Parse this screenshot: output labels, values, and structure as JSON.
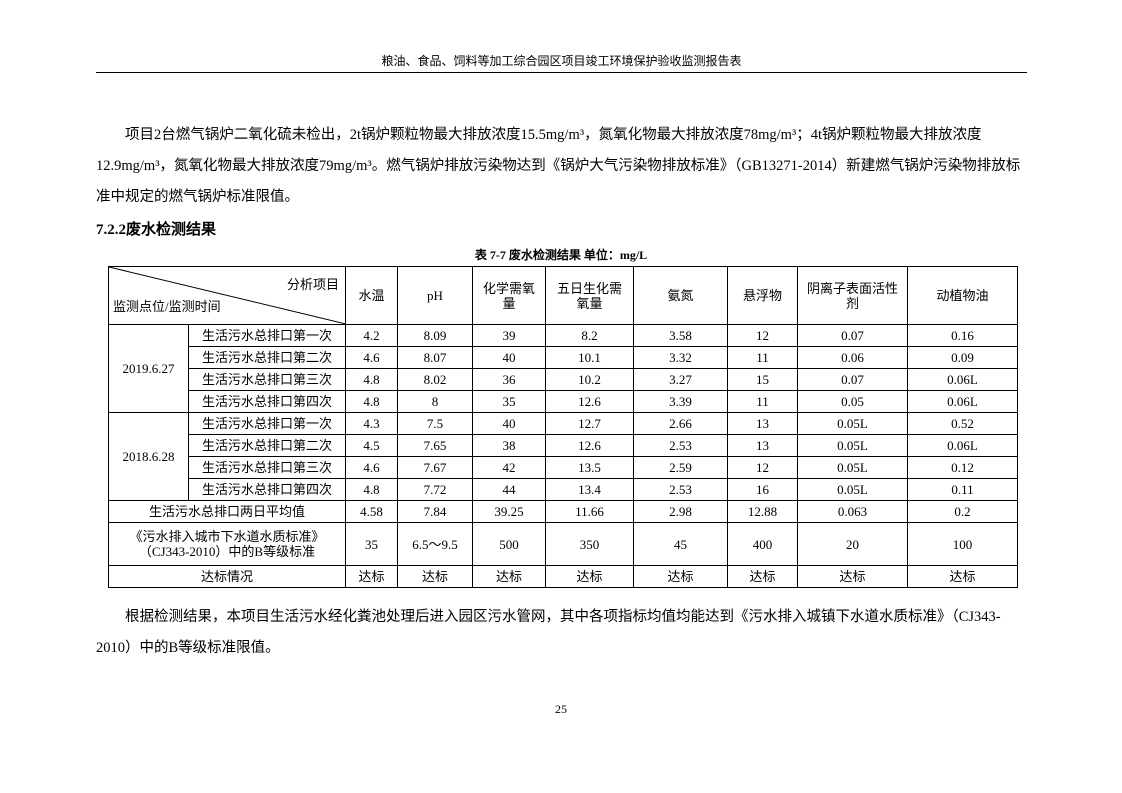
{
  "header": "粮油、食品、饲料等加工综合园区项目竣工环境保护验收监测报告表",
  "paragraph1": "项目2台燃气锅炉二氧化硫未检出，2t锅炉颗粒物最大排放浓度15.5mg/m³，氮氧化物最大排放浓度78mg/m³；4t锅炉颗粒物最大排放浓度12.9mg/m³，氮氧化物最大排放浓度79mg/m³。燃气锅炉排放污染物达到《锅炉大气污染物排放标准》（GB13271-2014）新建燃气锅炉污染物排放标准中规定的燃气锅炉标准限值。",
  "section_title": "7.2.2废水检测结果",
  "table_caption": "表 7-7  废水检测结果   单位：mg/L",
  "table": {
    "corner_top": "分析项目",
    "corner_bottom": "监测点位/监测时间",
    "columns": [
      "水温",
      "pH",
      "化学需氧量",
      "五日生化需氧量",
      "氨氮",
      "悬浮物",
      "阴离子表面活性剂",
      "动植物油"
    ],
    "groups": [
      {
        "date": "2019.6.27",
        "rows": [
          {
            "point": "生活污水总排口第一次",
            "values": [
              "4.2",
              "8.09",
              "39",
              "8.2",
              "3.58",
              "12",
              "0.07",
              "0.16"
            ]
          },
          {
            "point": "生活污水总排口第二次",
            "values": [
              "4.6",
              "8.07",
              "40",
              "10.1",
              "3.32",
              "11",
              "0.06",
              "0.09"
            ]
          },
          {
            "point": "生活污水总排口第三次",
            "values": [
              "4.8",
              "8.02",
              "36",
              "10.2",
              "3.27",
              "15",
              "0.07",
              "0.06L"
            ]
          },
          {
            "point": "生活污水总排口第四次",
            "values": [
              "4.8",
              "8",
              "35",
              "12.6",
              "3.39",
              "11",
              "0.05",
              "0.06L"
            ]
          }
        ]
      },
      {
        "date": "2018.6.28",
        "rows": [
          {
            "point": "生活污水总排口第一次",
            "values": [
              "4.3",
              "7.5",
              "40",
              "12.7",
              "2.66",
              "13",
              "0.05L",
              "0.52"
            ]
          },
          {
            "point": "生活污水总排口第二次",
            "values": [
              "4.5",
              "7.65",
              "38",
              "12.6",
              "2.53",
              "13",
              "0.05L",
              "0.06L"
            ]
          },
          {
            "point": "生活污水总排口第三次",
            "values": [
              "4.6",
              "7.67",
              "42",
              "13.5",
              "2.59",
              "12",
              "0.05L",
              "0.12"
            ]
          },
          {
            "point": "生活污水总排口第四次",
            "values": [
              "4.8",
              "7.72",
              "44",
              "13.4",
              "2.53",
              "16",
              "0.05L",
              "0.11"
            ]
          }
        ]
      }
    ],
    "average": {
      "label": "生活污水总排口两日平均值",
      "values": [
        "4.58",
        "7.84",
        "39.25",
        "11.66",
        "2.98",
        "12.88",
        "0.063",
        "0.2"
      ]
    },
    "standard": {
      "label": "《污水排入城市下水道水质标准》（CJ343-2010）中的B等级标准",
      "values": [
        "35",
        "6.5～9.5",
        "500",
        "350",
        "45",
        "400",
        "20",
        "100"
      ]
    },
    "compliance": {
      "label": "达标情况",
      "values": [
        "达标",
        "达标",
        "达标",
        "达标",
        "达标",
        "达标",
        "达标",
        "达标"
      ]
    }
  },
  "paragraph2": "根据检测结果，本项目生活污水经化粪池处理后进入园区污水管网，其中各项指标均值均能达到《污水排入城镇下水道水质标准》（CJ343-2010）中的B等级标准限值。",
  "page_number": "25"
}
